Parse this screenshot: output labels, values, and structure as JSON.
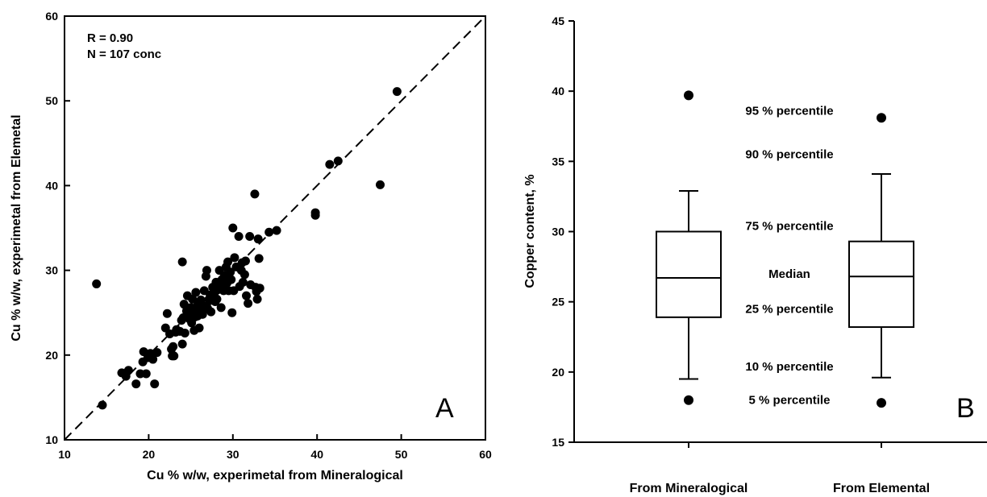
{
  "chart_data": [
    {
      "type": "scatter",
      "panel_label": "A",
      "xlabel": "Cu % w/w, experimetal from Mineralogical",
      "ylabel": "Cu % w/w, experimetal from Elemetal",
      "xlim": [
        10,
        60
      ],
      "ylim": [
        10,
        60
      ],
      "xticks": [
        10,
        20,
        30,
        40,
        50,
        60
      ],
      "yticks": [
        10,
        20,
        30,
        40,
        50,
        60
      ],
      "annotations": [
        "R = 0.90",
        "N = 107 conc"
      ],
      "reference_line": {
        "style": "dashed",
        "x": [
          10,
          60
        ],
        "y": [
          10,
          60
        ]
      },
      "points": [
        [
          13.8,
          28.4
        ],
        [
          14.5,
          14.1
        ],
        [
          16.8,
          17.9
        ],
        [
          17.3,
          17.5
        ],
        [
          17.6,
          18.2
        ],
        [
          18.5,
          16.6
        ],
        [
          19.0,
          17.8
        ],
        [
          19.3,
          19.2
        ],
        [
          19.4,
          20.4
        ],
        [
          19.7,
          17.8
        ],
        [
          19.9,
          19.7
        ],
        [
          20.2,
          20.2
        ],
        [
          20.5,
          19.5
        ],
        [
          20.7,
          16.6
        ],
        [
          21.0,
          20.3
        ],
        [
          22.0,
          23.2
        ],
        [
          22.2,
          24.9
        ],
        [
          22.5,
          22.5
        ],
        [
          22.7,
          20.7
        ],
        [
          22.8,
          19.9
        ],
        [
          22.9,
          21.0
        ],
        [
          23.0,
          19.9
        ],
        [
          23.2,
          22.7
        ],
        [
          23.3,
          23.0
        ],
        [
          23.7,
          22.8
        ],
        [
          24.0,
          31.0
        ],
        [
          24.0,
          21.3
        ],
        [
          24.1,
          24.4
        ],
        [
          24.2,
          26.0
        ],
        [
          24.3,
          22.6
        ],
        [
          24.5,
          25.2
        ],
        [
          24.6,
          27.0
        ],
        [
          24.8,
          24.3
        ],
        [
          25.0,
          25.6
        ],
        [
          25.1,
          23.8
        ],
        [
          25.2,
          26.6
        ],
        [
          25.3,
          25.1
        ],
        [
          25.4,
          22.9
        ],
        [
          25.5,
          24.5
        ],
        [
          25.6,
          27.4
        ],
        [
          25.7,
          25.7
        ],
        [
          25.8,
          24.6
        ],
        [
          25.9,
          26.1
        ],
        [
          26.0,
          23.2
        ],
        [
          26.1,
          25.3
        ],
        [
          26.2,
          26.5
        ],
        [
          26.3,
          24.9
        ],
        [
          26.5,
          25.8
        ],
        [
          26.6,
          27.6
        ],
        [
          26.8,
          29.3
        ],
        [
          26.9,
          30.0
        ],
        [
          27.0,
          25.5
        ],
        [
          27.2,
          26.4
        ],
        [
          27.3,
          27.1
        ],
        [
          27.4,
          25.1
        ],
        [
          27.6,
          28.0
        ],
        [
          27.8,
          27.3
        ],
        [
          28.0,
          28.6
        ],
        [
          28.1,
          26.6
        ],
        [
          28.2,
          27.7
        ],
        [
          28.4,
          30.0
        ],
        [
          28.5,
          28.1
        ],
        [
          28.6,
          25.6
        ],
        [
          28.7,
          28.9
        ],
        [
          28.9,
          27.6
        ],
        [
          29.0,
          29.4
        ],
        [
          29.2,
          30.4
        ],
        [
          29.3,
          28.5
        ],
        [
          29.4,
          31.0
        ],
        [
          29.5,
          27.6
        ],
        [
          29.7,
          29.8
        ],
        [
          29.9,
          25.0
        ],
        [
          30.0,
          35.0
        ],
        [
          30.1,
          27.6
        ],
        [
          30.2,
          31.5
        ],
        [
          30.4,
          30.4
        ],
        [
          30.7,
          34.0
        ],
        [
          30.8,
          28.1
        ],
        [
          31.0,
          30.0
        ],
        [
          31.1,
          30.9
        ],
        [
          31.2,
          28.6
        ],
        [
          31.4,
          29.5
        ],
        [
          31.5,
          31.1
        ],
        [
          31.6,
          27.0
        ],
        [
          31.8,
          26.1
        ],
        [
          32.0,
          34.0
        ],
        [
          32.1,
          28.3
        ],
        [
          32.6,
          39.0
        ],
        [
          32.7,
          28.0
        ],
        [
          32.8,
          27.5
        ],
        [
          32.9,
          26.6
        ],
        [
          33.0,
          33.7
        ],
        [
          33.1,
          31.4
        ],
        [
          33.2,
          27.9
        ],
        [
          34.3,
          34.5
        ],
        [
          35.2,
          34.7
        ],
        [
          39.8,
          36.8
        ],
        [
          39.8,
          36.5
        ],
        [
          41.5,
          42.5
        ],
        [
          42.5,
          42.9
        ],
        [
          47.5,
          40.1
        ],
        [
          49.5,
          51.1
        ],
        [
          26.4,
          24.8
        ],
        [
          27.9,
          26.3
        ],
        [
          23.9,
          24.1
        ],
        [
          29.8,
          28.9
        ],
        [
          25.9,
          25.4
        ]
      ]
    },
    {
      "type": "box",
      "panel_label": "B",
      "ylabel": "Copper content, %",
      "ylim": [
        15,
        45
      ],
      "yticks": [
        15,
        20,
        25,
        30,
        35,
        40,
        45
      ],
      "categories": [
        "From Mineralogical",
        "From Elemental"
      ],
      "boxes": [
        {
          "p5": 18.0,
          "p10": 19.5,
          "p25": 23.9,
          "median": 26.7,
          "p75": 30.0,
          "p90": 32.9,
          "p95": 39.7
        },
        {
          "p5": 17.8,
          "p10": 19.6,
          "p25": 23.2,
          "median": 26.8,
          "p75": 29.3,
          "p90": 34.1,
          "p95": 38.1
        }
      ],
      "legend_labels": {
        "p95": "95 % percentile",
        "p90": "90 % percentile",
        "p75": "75 % percentile",
        "median": "Median",
        "p25": "25 % percentile",
        "p10": "10 % percentile",
        "p5": "5 % percentile"
      }
    }
  ]
}
